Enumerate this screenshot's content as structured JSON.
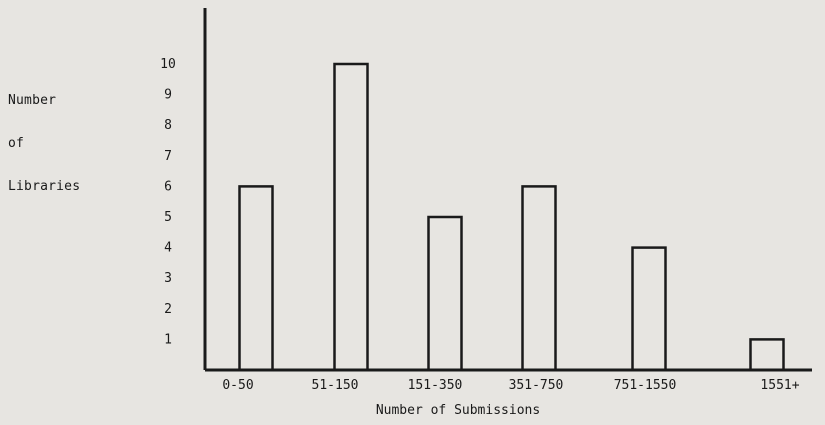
{
  "chart_data": {
    "type": "bar",
    "categories": [
      "0-50",
      "51-150",
      "151-350",
      "351-750",
      "751-1550",
      "1551+"
    ],
    "values": [
      6,
      10,
      5,
      6,
      4,
      1
    ],
    "title": "",
    "xlabel": "Number of Submissions",
    "ylabel_lines": [
      "Number",
      "of",
      "Libraries"
    ],
    "yticks": [
      "1",
      "2",
      "3",
      "4",
      "5",
      "6",
      "7",
      "8",
      "9",
      "10"
    ],
    "ylim": [
      0,
      11
    ],
    "grid": false,
    "legend": "none"
  }
}
